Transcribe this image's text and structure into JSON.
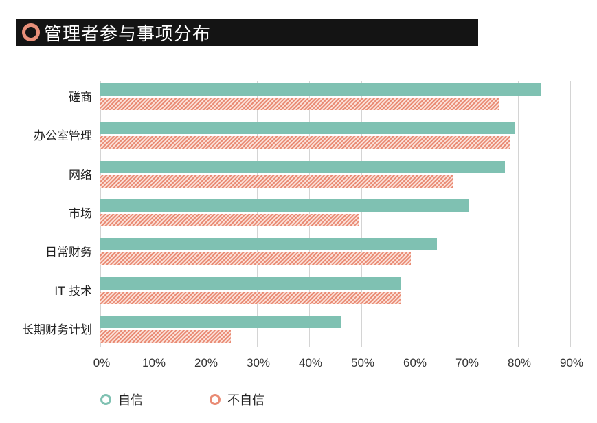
{
  "title": "管理者参与事项分布",
  "colors": {
    "confident": "#7fc1b2",
    "not_confident": "#e98b74",
    "title_ring": "#e8907a",
    "title_bg": "#141414"
  },
  "legend": [
    {
      "label": "自信",
      "color": "#7fc1b2"
    },
    {
      "label": "不自信",
      "color": "#e98b74"
    }
  ],
  "x_ticks": [
    "0%",
    "10%",
    "20%",
    "30%",
    "40%",
    "50%",
    "60%",
    "70%",
    "80%",
    "90%"
  ],
  "chart_data": {
    "type": "bar",
    "orientation": "horizontal",
    "title": "管理者参与事项分布",
    "xlabel": "",
    "ylabel": "",
    "xlim": [
      0,
      90
    ],
    "grid": true,
    "legend_position": "bottom-left",
    "categories": [
      "磋商",
      "办公室管理",
      "网络",
      "市场",
      "日常财务",
      "IT 技术",
      "长期财务计划"
    ],
    "series": [
      {
        "name": "自信",
        "values": [
          84.5,
          79.5,
          77.5,
          70.5,
          64.5,
          57.5,
          46
        ]
      },
      {
        "name": "不自信",
        "values": [
          76.5,
          78.5,
          67.5,
          49.5,
          59.5,
          57.5,
          25
        ]
      }
    ]
  }
}
